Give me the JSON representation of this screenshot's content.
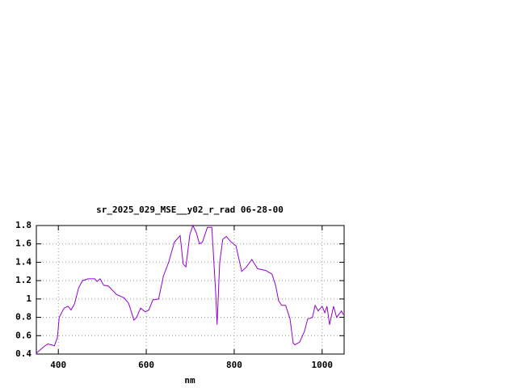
{
  "chart_data": {
    "type": "line",
    "title": "sr_2025_029_MSE__y02_r_rad 06-28-00",
    "x_label": "nm",
    "xlim": [
      350,
      1050
    ],
    "xticks": [
      400,
      600,
      800,
      1000
    ],
    "ylim": [
      0.4,
      1.8
    ],
    "yticks": [
      0.4,
      0.6,
      0.8,
      1,
      1.2,
      1.4,
      1.6,
      1.8
    ],
    "grid": true,
    "series": [
      {
        "color": "#9400d3",
        "x": [
          350,
          367,
          376,
          385,
          391,
          398,
          402,
          413,
          422,
          429,
          437,
          446,
          455,
          468,
          483,
          488,
          495,
          503,
          514,
          532,
          550,
          560,
          572,
          578,
          587,
          598,
          606,
          615,
          628,
          639,
          651,
          664,
          677,
          684,
          690,
          699,
          706,
          714,
          721,
          728,
          739,
          749,
          752,
          758,
          761,
          767,
          774,
          782,
          793,
          804,
          817,
          828,
          840,
          853,
          872,
          886,
          894,
          901,
          908,
          917,
          927,
          934,
          938,
          949,
          960,
          967,
          978,
          984,
          991,
          1000,
          1006,
          1011,
          1017,
          1026,
          1033,
          1044,
          1048
        ],
        "values": [
          0.41,
          0.48,
          0.51,
          0.5,
          0.49,
          0.58,
          0.8,
          0.9,
          0.92,
          0.88,
          0.95,
          1.12,
          1.2,
          1.22,
          1.22,
          1.19,
          1.22,
          1.15,
          1.14,
          1.05,
          1.01,
          0.95,
          0.77,
          0.8,
          0.9,
          0.86,
          0.88,
          0.99,
          1.0,
          1.25,
          1.4,
          1.62,
          1.69,
          1.38,
          1.35,
          1.7,
          1.8,
          1.72,
          1.6,
          1.62,
          1.78,
          1.78,
          1.55,
          1.05,
          0.72,
          1.4,
          1.65,
          1.68,
          1.62,
          1.58,
          1.3,
          1.35,
          1.43,
          1.33,
          1.31,
          1.27,
          1.15,
          0.98,
          0.93,
          0.93,
          0.78,
          0.52,
          0.5,
          0.53,
          0.65,
          0.78,
          0.8,
          0.93,
          0.87,
          0.92,
          0.85,
          0.92,
          0.72,
          0.92,
          0.8,
          0.87,
          0.83
        ]
      }
    ]
  }
}
